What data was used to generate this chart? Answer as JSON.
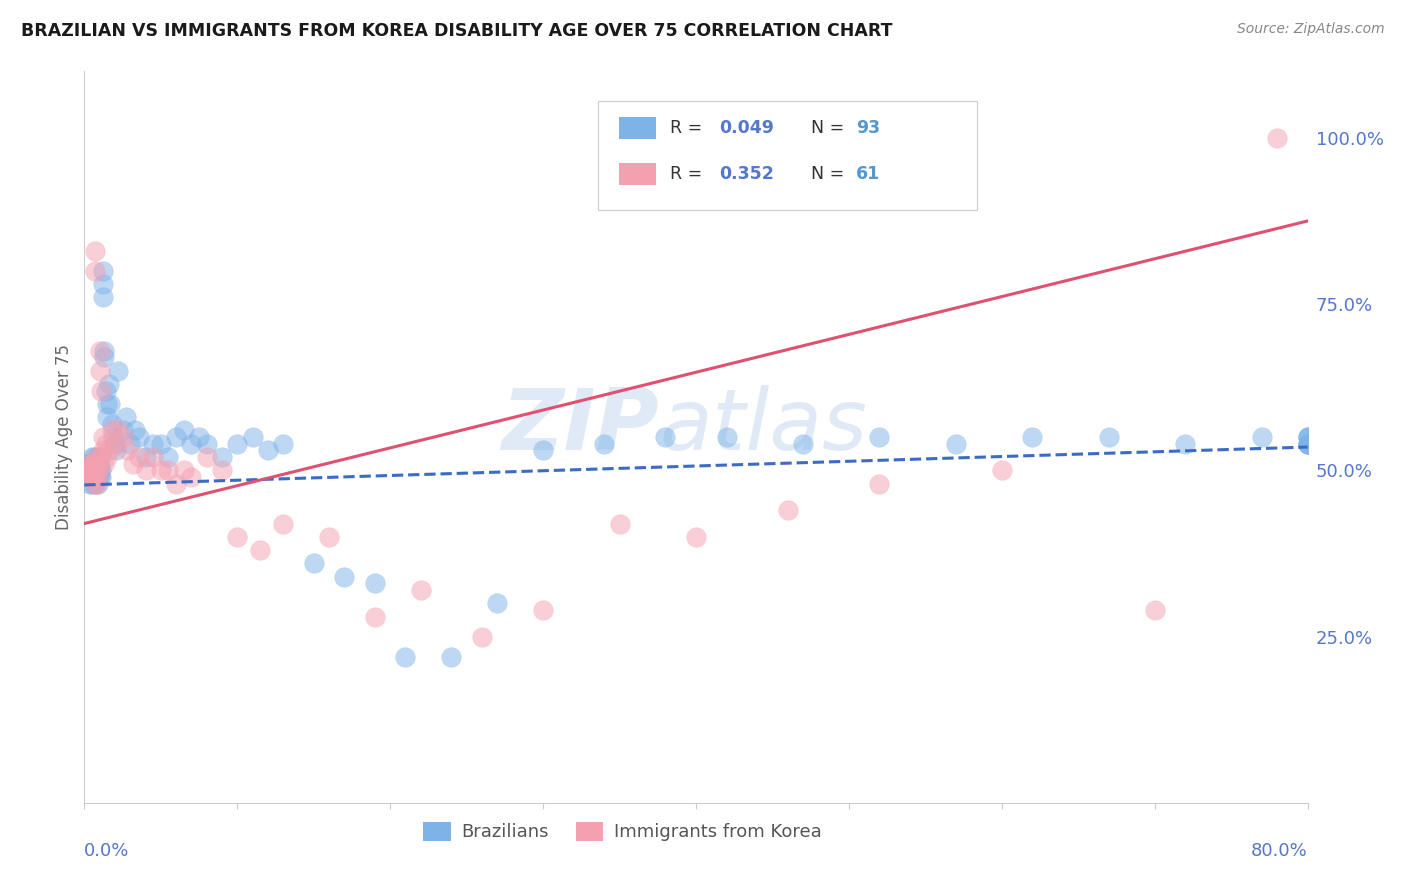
{
  "title": "BRAZILIAN VS IMMIGRANTS FROM KOREA DISABILITY AGE OVER 75 CORRELATION CHART",
  "source": "Source: ZipAtlas.com",
  "ylabel": "Disability Age Over 75",
  "ytick_labels": [
    "25.0%",
    "50.0%",
    "75.0%",
    "100.0%"
  ],
  "ytick_values": [
    0.25,
    0.5,
    0.75,
    1.0
  ],
  "legend_label_blue": "Brazilians",
  "legend_label_pink": "Immigrants from Korea",
  "blue_color": "#7EB3E8",
  "pink_color": "#F4A0B0",
  "blue_line_color": "#3B6BC4",
  "pink_line_color": "#E05070",
  "title_color": "#1a1a1a",
  "source_color": "#888888",
  "axis_label_color": "#5577cc",
  "legend_r_color": "#333333",
  "legend_rval_color": "#5577cc",
  "legend_nval_color": "#5599cc",
  "watermark_color": "#dde8f5",
  "background_color": "#ffffff",
  "grid_color": "#cccccc",
  "xlim": [
    0.0,
    0.8
  ],
  "ylim": [
    0.0,
    1.1
  ],
  "blue_trendline_x": [
    0.0,
    0.8
  ],
  "blue_trendline_y": [
    0.478,
    0.535
  ],
  "pink_trendline_x": [
    0.0,
    0.8
  ],
  "pink_trendline_y": [
    0.42,
    0.875
  ],
  "blue_x": [
    0.002,
    0.003,
    0.003,
    0.003,
    0.004,
    0.004,
    0.004,
    0.004,
    0.005,
    0.005,
    0.005,
    0.005,
    0.005,
    0.006,
    0.006,
    0.006,
    0.006,
    0.007,
    0.007,
    0.007,
    0.007,
    0.008,
    0.008,
    0.008,
    0.008,
    0.009,
    0.009,
    0.009,
    0.009,
    0.01,
    0.01,
    0.01,
    0.01,
    0.011,
    0.011,
    0.012,
    0.012,
    0.012,
    0.013,
    0.013,
    0.014,
    0.015,
    0.015,
    0.016,
    0.017,
    0.018,
    0.019,
    0.02,
    0.021,
    0.022,
    0.025,
    0.027,
    0.03,
    0.033,
    0.036,
    0.04,
    0.045,
    0.05,
    0.055,
    0.06,
    0.065,
    0.07,
    0.075,
    0.08,
    0.09,
    0.1,
    0.11,
    0.12,
    0.13,
    0.15,
    0.17,
    0.19,
    0.21,
    0.24,
    0.27,
    0.3,
    0.34,
    0.38,
    0.42,
    0.47,
    0.52,
    0.57,
    0.62,
    0.67,
    0.72,
    0.77,
    0.8,
    0.8,
    0.8,
    0.8,
    0.8,
    0.8,
    0.8
  ],
  "blue_y": [
    0.5,
    0.5,
    0.49,
    0.51,
    0.5,
    0.49,
    0.51,
    0.48,
    0.52,
    0.5,
    0.49,
    0.51,
    0.48,
    0.52,
    0.5,
    0.49,
    0.51,
    0.5,
    0.49,
    0.51,
    0.48,
    0.52,
    0.5,
    0.49,
    0.51,
    0.5,
    0.49,
    0.51,
    0.48,
    0.52,
    0.5,
    0.49,
    0.51,
    0.5,
    0.49,
    0.78,
    0.76,
    0.8,
    0.68,
    0.67,
    0.62,
    0.6,
    0.58,
    0.63,
    0.6,
    0.57,
    0.55,
    0.54,
    0.53,
    0.65,
    0.56,
    0.58,
    0.54,
    0.56,
    0.55,
    0.52,
    0.54,
    0.54,
    0.52,
    0.55,
    0.56,
    0.54,
    0.55,
    0.54,
    0.52,
    0.54,
    0.55,
    0.53,
    0.54,
    0.36,
    0.34,
    0.33,
    0.22,
    0.22,
    0.3,
    0.53,
    0.54,
    0.55,
    0.55,
    0.54,
    0.55,
    0.54,
    0.55,
    0.55,
    0.54,
    0.55,
    0.54,
    0.55,
    0.54,
    0.55,
    0.54,
    0.55,
    0.54
  ],
  "pink_x": [
    0.003,
    0.003,
    0.004,
    0.004,
    0.004,
    0.005,
    0.005,
    0.005,
    0.005,
    0.006,
    0.006,
    0.006,
    0.007,
    0.007,
    0.007,
    0.008,
    0.008,
    0.008,
    0.009,
    0.009,
    0.01,
    0.01,
    0.011,
    0.011,
    0.012,
    0.012,
    0.013,
    0.014,
    0.015,
    0.016,
    0.018,
    0.02,
    0.022,
    0.025,
    0.028,
    0.032,
    0.036,
    0.04,
    0.045,
    0.05,
    0.055,
    0.06,
    0.065,
    0.07,
    0.08,
    0.09,
    0.1,
    0.115,
    0.13,
    0.16,
    0.19,
    0.22,
    0.26,
    0.3,
    0.35,
    0.4,
    0.46,
    0.52,
    0.6,
    0.7,
    0.78
  ],
  "pink_y": [
    0.5,
    0.49,
    0.51,
    0.5,
    0.49,
    0.51,
    0.5,
    0.49,
    0.51,
    0.5,
    0.49,
    0.51,
    0.83,
    0.8,
    0.48,
    0.52,
    0.5,
    0.48,
    0.5,
    0.49,
    0.68,
    0.65,
    0.62,
    0.52,
    0.55,
    0.53,
    0.51,
    0.54,
    0.52,
    0.53,
    0.56,
    0.54,
    0.56,
    0.55,
    0.53,
    0.51,
    0.52,
    0.5,
    0.52,
    0.5,
    0.5,
    0.48,
    0.5,
    0.49,
    0.52,
    0.5,
    0.4,
    0.38,
    0.42,
    0.4,
    0.28,
    0.32,
    0.25,
    0.29,
    0.42,
    0.4,
    0.44,
    0.48,
    0.5,
    0.29,
    1.0
  ]
}
